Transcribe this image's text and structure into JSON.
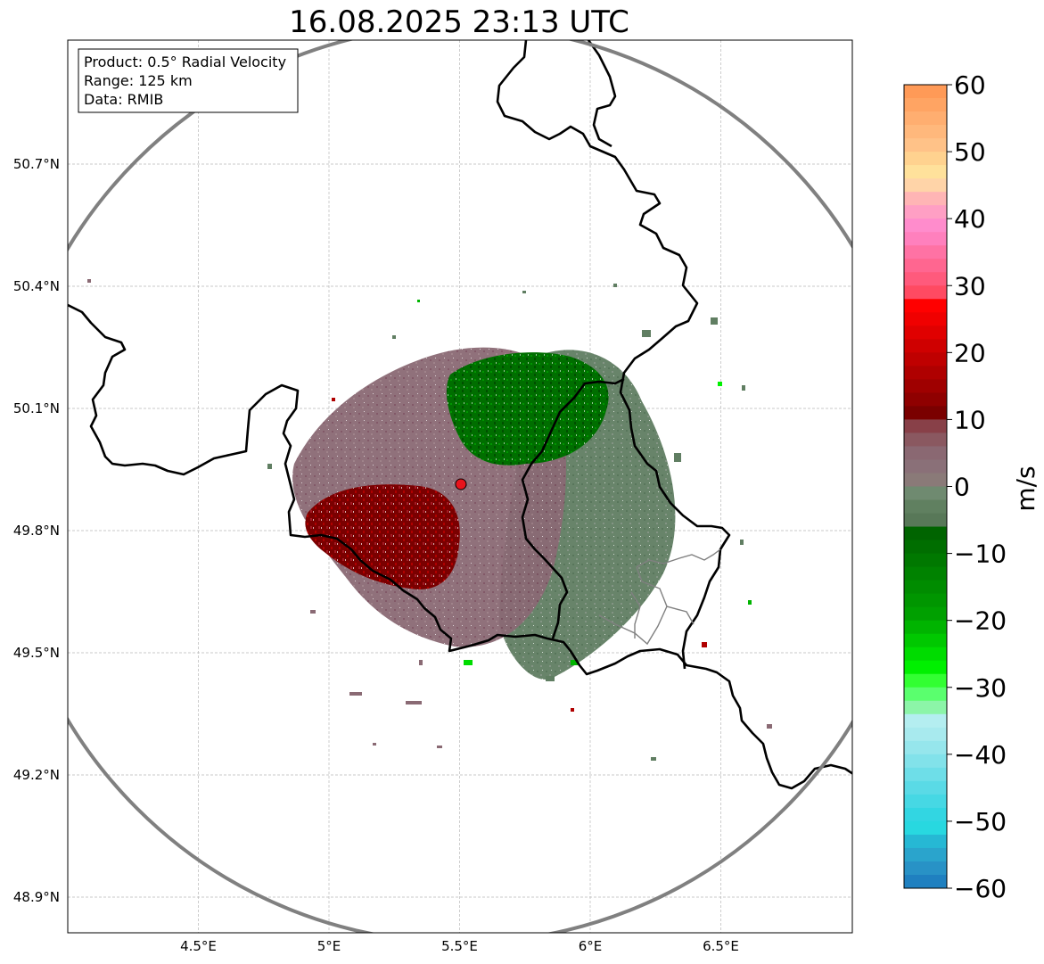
{
  "title": "16.08.2025 23:13 UTC",
  "info_box": {
    "line1": "Product: 0.5° Radial Velocity",
    "line2": "Range: 125 km",
    "line3": "Data: RMIB"
  },
  "map": {
    "lon_range": [
      4.0,
      7.0
    ],
    "lat_range": [
      48.8,
      51.0
    ],
    "lon_ticks": [
      {
        "value": 4.5,
        "label": "4.5°E"
      },
      {
        "value": 5.0,
        "label": "5°E"
      },
      {
        "value": 5.5,
        "label": "5.5°E"
      },
      {
        "value": 6.0,
        "label": "6°E"
      },
      {
        "value": 6.5,
        "label": "6.5°E"
      }
    ],
    "lat_ticks": [
      {
        "value": 50.7,
        "label": "50.7°N"
      },
      {
        "value": 50.4,
        "label": "50.4°N"
      },
      {
        "value": 50.1,
        "label": "50.1°N"
      },
      {
        "value": 49.8,
        "label": "49.8°N"
      },
      {
        "value": 49.5,
        "label": "49.5°N"
      },
      {
        "value": 49.2,
        "label": "49.2°N"
      },
      {
        "value": 48.9,
        "label": "48.9°N"
      }
    ],
    "radar_site": {
      "lon": 5.505,
      "lat": 49.914
    },
    "range_ring_color": "#808080",
    "radar_marker_color": "#e8141c"
  },
  "colorbar": {
    "unit": "m/s",
    "range": [
      -60,
      60
    ],
    "ticks": [
      {
        "value": 60,
        "label": "60"
      },
      {
        "value": 50,
        "label": "50"
      },
      {
        "value": 40,
        "label": "40"
      },
      {
        "value": 30,
        "label": "30"
      },
      {
        "value": 20,
        "label": "20"
      },
      {
        "value": 10,
        "label": "10"
      },
      {
        "value": 0,
        "label": "0"
      },
      {
        "value": -10,
        "label": "−10"
      },
      {
        "value": -20,
        "label": "−20"
      },
      {
        "value": -30,
        "label": "−30"
      },
      {
        "value": -40,
        "label": "−40"
      },
      {
        "value": -50,
        "label": "−50"
      },
      {
        "value": -60,
        "label": "−60"
      }
    ],
    "bands": [
      {
        "from": 58,
        "to": 60,
        "color": "#ff9a57"
      },
      {
        "from": 56,
        "to": 58,
        "color": "#ffa463"
      },
      {
        "from": 54,
        "to": 56,
        "color": "#ffae70"
      },
      {
        "from": 52,
        "to": 54,
        "color": "#ffb87c"
      },
      {
        "from": 50,
        "to": 52,
        "color": "#ffc288"
      },
      {
        "from": 48,
        "to": 50,
        "color": "#ffd28f"
      },
      {
        "from": 46,
        "to": 48,
        "color": "#ffe19b"
      },
      {
        "from": 44,
        "to": 46,
        "color": "#ffd4a8"
      },
      {
        "from": 42,
        "to": 44,
        "color": "#ffb5b5"
      },
      {
        "from": 40,
        "to": 42,
        "color": "#ff9fc4"
      },
      {
        "from": 38,
        "to": 40,
        "color": "#ff8ccc"
      },
      {
        "from": 36,
        "to": 38,
        "color": "#ff80bd"
      },
      {
        "from": 34,
        "to": 36,
        "color": "#ff72a4"
      },
      {
        "from": 32,
        "to": 34,
        "color": "#ff6690"
      },
      {
        "from": 30,
        "to": 32,
        "color": "#ff5a7c"
      },
      {
        "from": 28,
        "to": 30,
        "color": "#ff4a62"
      },
      {
        "from": 26,
        "to": 28,
        "color": "#ff0000"
      },
      {
        "from": 24,
        "to": 26,
        "color": "#f00000"
      },
      {
        "from": 22,
        "to": 24,
        "color": "#e00000"
      },
      {
        "from": 20,
        "to": 22,
        "color": "#cf0000"
      },
      {
        "from": 18,
        "to": 20,
        "color": "#bf0000"
      },
      {
        "from": 16,
        "to": 18,
        "color": "#af0000"
      },
      {
        "from": 14,
        "to": 16,
        "color": "#9f0000"
      },
      {
        "from": 12,
        "to": 14,
        "color": "#8f0000"
      },
      {
        "from": 10,
        "to": 12,
        "color": "#7a0000"
      },
      {
        "from": 8,
        "to": 10,
        "color": "#884048"
      },
      {
        "from": 6,
        "to": 8,
        "color": "#8a5860"
      },
      {
        "from": 4,
        "to": 6,
        "color": "#8a6872"
      },
      {
        "from": 2,
        "to": 4,
        "color": "#8a7078"
      },
      {
        "from": 0,
        "to": 2,
        "color": "#8a7a78"
      },
      {
        "from": -2,
        "to": 0,
        "color": "#6f8a70"
      },
      {
        "from": -4,
        "to": -2,
        "color": "#608060"
      },
      {
        "from": -6,
        "to": -4,
        "color": "#587858"
      },
      {
        "from": -8,
        "to": -6,
        "color": "#006400"
      },
      {
        "from": -10,
        "to": -8,
        "color": "#006e00"
      },
      {
        "from": -12,
        "to": -10,
        "color": "#007800"
      },
      {
        "from": -14,
        "to": -12,
        "color": "#008200"
      },
      {
        "from": -16,
        "to": -14,
        "color": "#008c00"
      },
      {
        "from": -18,
        "to": -16,
        "color": "#009600"
      },
      {
        "from": -20,
        "to": -18,
        "color": "#00a000"
      },
      {
        "from": -22,
        "to": -20,
        "color": "#00b400"
      },
      {
        "from": -24,
        "to": -22,
        "color": "#00c800"
      },
      {
        "from": -26,
        "to": -24,
        "color": "#00dc00"
      },
      {
        "from": -28,
        "to": -26,
        "color": "#00f000"
      },
      {
        "from": -30,
        "to": -28,
        "color": "#32ff32"
      },
      {
        "from": -32,
        "to": -30,
        "color": "#5aff6e"
      },
      {
        "from": -34,
        "to": -32,
        "color": "#8cf5a8"
      },
      {
        "from": -36,
        "to": -34,
        "color": "#b4eef0"
      },
      {
        "from": -38,
        "to": -36,
        "color": "#a8eaee"
      },
      {
        "from": -40,
        "to": -38,
        "color": "#96e6ec"
      },
      {
        "from": -42,
        "to": -40,
        "color": "#82e2ea"
      },
      {
        "from": -44,
        "to": -42,
        "color": "#6edee8"
      },
      {
        "from": -46,
        "to": -44,
        "color": "#5adae6"
      },
      {
        "from": -48,
        "to": -46,
        "color": "#46d8e4"
      },
      {
        "from": -50,
        "to": -48,
        "color": "#32d6e2"
      },
      {
        "from": -52,
        "to": -50,
        "color": "#28d8e0"
      },
      {
        "from": -54,
        "to": -52,
        "color": "#26b8d4"
      },
      {
        "from": -56,
        "to": -54,
        "color": "#2aa4cc"
      },
      {
        "from": -58,
        "to": -56,
        "color": "#2892c6"
      },
      {
        "from": -60,
        "to": -58,
        "color": "#1f80c0"
      }
    ]
  }
}
